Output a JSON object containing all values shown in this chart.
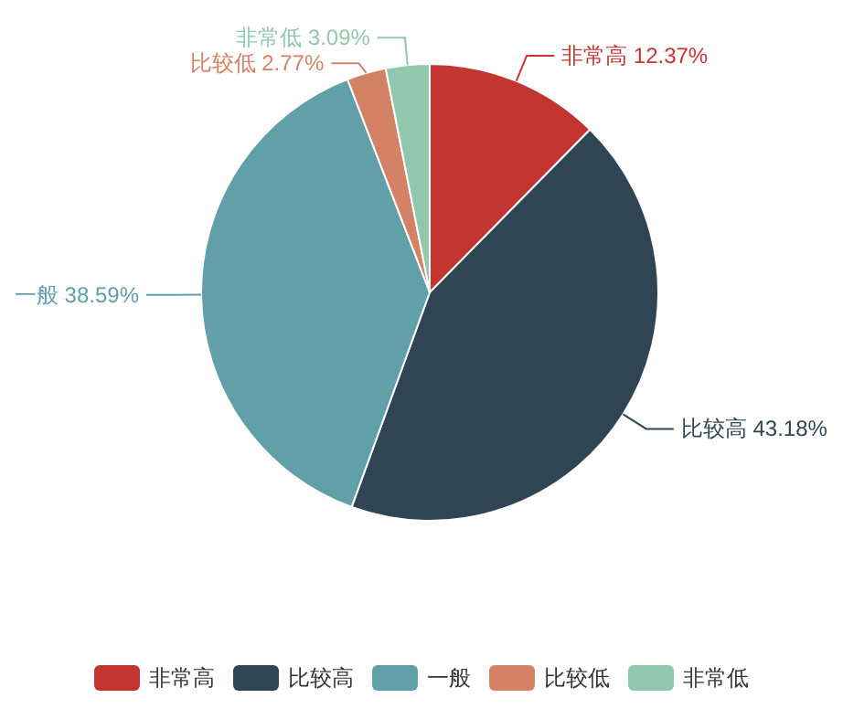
{
  "chart_data": {
    "type": "pie",
    "categories": [
      "非常高",
      "比较高",
      "一般",
      "比较低",
      "非常低"
    ],
    "values": [
      12.37,
      43.18,
      38.59,
      2.77,
      3.09
    ],
    "colors": [
      "#c23531",
      "#2f4554",
      "#61a0a8",
      "#d48265",
      "#91c7ae"
    ],
    "value_labels": [
      "12.37%",
      "43.18%",
      "38.59%",
      "2.77%",
      "3.09%"
    ],
    "legend": "bottom"
  }
}
